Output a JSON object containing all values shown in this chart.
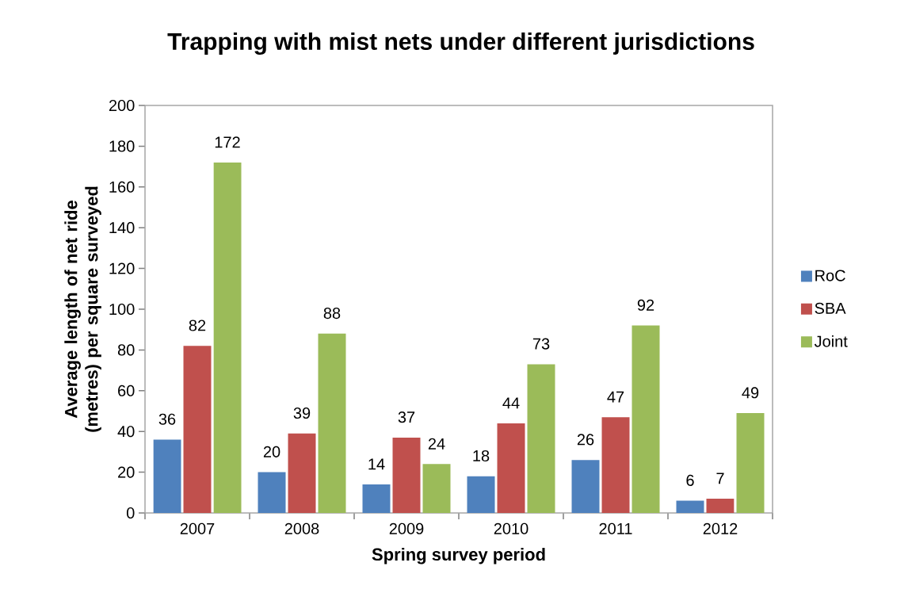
{
  "chart_data": {
    "type": "bar",
    "title": "Trapping with mist nets under different jurisdictions",
    "xlabel": "Spring survey period",
    "ylabel": "Average length of net ride (metres) per square surveyed",
    "categories": [
      "2007",
      "2008",
      "2009",
      "2010",
      "2011",
      "2012"
    ],
    "series": [
      {
        "name": "RoC",
        "color": "#4f81bd",
        "values": [
          36,
          20,
          14,
          18,
          26,
          6
        ]
      },
      {
        "name": "SBA",
        "color": "#c0504d",
        "values": [
          82,
          39,
          37,
          44,
          47,
          7
        ]
      },
      {
        "name": "Joint",
        "color": "#9bbb59",
        "values": [
          172,
          88,
          24,
          73,
          92,
          49
        ]
      }
    ],
    "ylim": [
      0,
      200
    ],
    "yticks": [
      0,
      20,
      40,
      60,
      80,
      100,
      120,
      140,
      160,
      180,
      200
    ],
    "data_labels": true,
    "legend": "right",
    "grid": false
  }
}
